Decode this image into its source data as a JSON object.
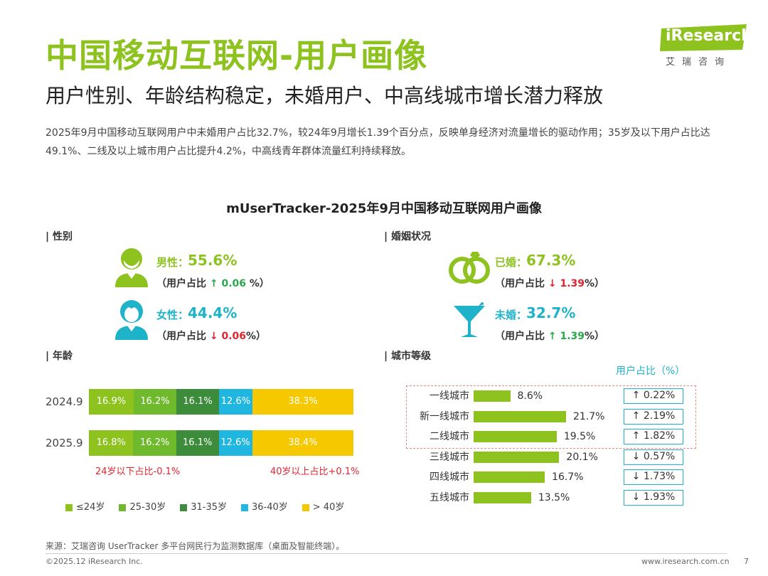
{
  "header": {
    "title": "中国移动互联网-用户画像",
    "subtitle": "用户性别、年龄结构稳定，未婚用户、中高线城市增长潜力释放",
    "description": "2025年9月中国移动互联网用户中未婚用户占比32.7%，较24年9月增长1.39个百分点，反映单身经济对流量增长的驱动作用；35岁及以下用户占比达49.1%、二线及以上城市用户占比提升4.2%，中高线青年群体流量红利持续释放。"
  },
  "logo": {
    "brand": "iResearch",
    "chinese": "艾瑞咨询"
  },
  "chart_data": [
    {
      "type": "table",
      "title": "mUserTracker-2025年9月中国移动互联网用户画像",
      "section": "| 性别",
      "rows": [
        {
          "label": "男性：",
          "value": "55.6%",
          "share_prefix": "（用户占比 ",
          "arrow": "↑",
          "change": "0.06",
          "share_suffix": " %）"
        },
        {
          "label": "女性：",
          "value": "44.4%",
          "share_prefix": "（用户占比 ",
          "arrow": "↓",
          "change": "0.06",
          "share_suffix": "%）"
        }
      ]
    },
    {
      "type": "table",
      "section": "| 婚姻状况",
      "rows": [
        {
          "label": "已婚：",
          "value": "67.3%",
          "share_prefix": "（用户占比 ",
          "arrow": "↓",
          "change": "1.39",
          "share_suffix": "%）"
        },
        {
          "label": "未婚：",
          "value": "32.7%",
          "share_prefix": "（用户占比 ",
          "arrow": "↑",
          "change": "1.39",
          "share_suffix": "%）"
        }
      ]
    },
    {
      "type": "bar",
      "stacked": true,
      "orientation": "horizontal",
      "section": "| 年龄",
      "categories": [
        "2024.9",
        "2025.9"
      ],
      "series": [
        {
          "name": "≤24岁",
          "values": [
            16.9,
            16.8
          ],
          "labels": [
            "16.9%",
            "16.8%"
          ],
          "color": "#8dc21f"
        },
        {
          "name": "25-30岁",
          "values": [
            16.2,
            16.2
          ],
          "labels": [
            "16.2%",
            "16.2%"
          ],
          "color": "#6fb92c"
        },
        {
          "name": "31-35岁",
          "values": [
            16.1,
            16.1
          ],
          "labels": [
            "16.1%",
            "16.1%"
          ],
          "color": "#3c8c3c"
        },
        {
          "name": "36-40岁",
          "values": [
            12.6,
            12.6
          ],
          "labels": [
            "12.6%",
            "12.6%"
          ],
          "color": "#1fb6e0"
        },
        {
          "name": "> 40岁",
          "values": [
            38.3,
            38.4
          ],
          "labels": [
            "38.3%",
            "38.4%"
          ],
          "color": "#f5c800"
        }
      ],
      "annotations": [
        "24岁以下占比-0.1%",
        "40岁以上占比+0.1%"
      ],
      "xlim": [
        0,
        100
      ]
    },
    {
      "type": "bar",
      "orientation": "horizontal",
      "section": "| 城市等级",
      "unit_label": "用户占比（%）",
      "categories": [
        "一线城市",
        "新一线城市",
        "二线城市",
        "三线城市",
        "四线城市",
        "五线城市"
      ],
      "values": [
        8.6,
        21.7,
        19.5,
        20.1,
        16.7,
        13.5
      ],
      "labels": [
        "8.6%",
        "21.7%",
        "19.5%",
        "20.1%",
        "16.7%",
        "13.5%"
      ],
      "changes": [
        "↑ 0.22%",
        "↑ 2.19%",
        "↑ 1.82%",
        "↓ 0.57%",
        "↓ 1.73%",
        "↓ 1.93%"
      ],
      "xlim": [
        0,
        25
      ]
    }
  ],
  "footer": {
    "source": "来源：艾瑞咨询 UserTracker 多平台网民行为监测数据库（桌面及智能终端）。",
    "copyright": "©2025.12 iResearch Inc.",
    "website": "www.iresearch.com.cn",
    "page": "7"
  },
  "colors": {
    "accent": "#8dc21f",
    "teal": "#1fb3c9",
    "down": "#e0252f",
    "up": "#2aa84a"
  }
}
